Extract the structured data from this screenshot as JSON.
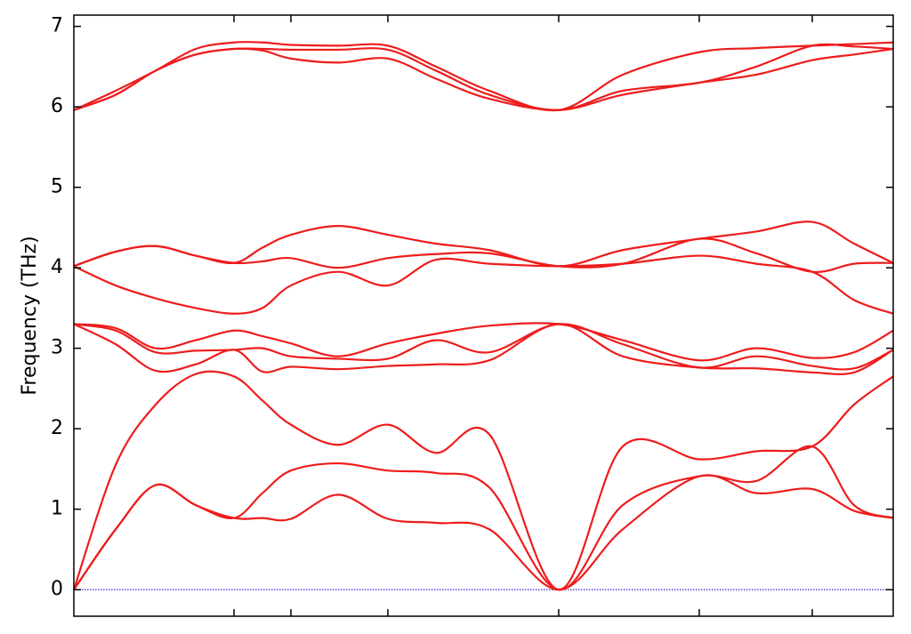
{
  "chart_data": {
    "type": "line",
    "ylabel": "Frequency (THz)",
    "color": "#ee1c1c",
    "x": [
      0,
      0.47,
      0.92,
      1.37,
      1.8,
      2.12,
      2.44,
      2.97,
      3.53,
      4.07,
      4.67,
      5.45,
      6.17,
      7.03,
      7.67,
      8.3,
      8.77,
      9.21
    ],
    "series": [
      {
        "values": [
          0,
          0.75,
          1.3,
          1.05,
          0.89,
          0.89,
          0.88,
          1.18,
          0.88,
          0.83,
          0.75,
          0,
          0.75,
          1.41,
          1.2,
          1.25,
          0.98,
          0.89
        ]
      },
      {
        "values": [
          0,
          0.75,
          1.3,
          1.05,
          0.89,
          1.2,
          1.48,
          1.57,
          1.48,
          1.45,
          1.27,
          0,
          1.05,
          1.41,
          1.35,
          1.78,
          1.05,
          0.89
        ]
      },
      {
        "values": [
          0,
          1.55,
          2.3,
          2.68,
          2.65,
          2.35,
          2.05,
          1.8,
          2.05,
          1.7,
          1.93,
          0,
          1.78,
          1.62,
          1.72,
          1.78,
          2.3,
          2.65
        ]
      },
      {
        "values": [
          3.3,
          3.05,
          2.72,
          2.8,
          2.98,
          2.71,
          2.77,
          2.74,
          2.78,
          2.8,
          2.85,
          3.3,
          2.9,
          2.76,
          2.75,
          2.7,
          2.7,
          2.98
        ]
      },
      {
        "values": [
          3.3,
          3.22,
          2.95,
          2.97,
          2.98,
          3.0,
          2.9,
          2.87,
          2.87,
          3.1,
          2.95,
          3.3,
          3.05,
          2.76,
          2.9,
          2.78,
          2.75,
          2.98
        ]
      },
      {
        "values": [
          3.3,
          3.25,
          3.0,
          3.1,
          3.22,
          3.15,
          3.06,
          2.9,
          3.06,
          3.18,
          3.28,
          3.3,
          3.1,
          2.85,
          3.0,
          2.88,
          2.95,
          3.22
        ]
      },
      {
        "values": [
          4.02,
          3.78,
          3.62,
          3.5,
          3.43,
          3.5,
          3.78,
          3.95,
          3.78,
          4.1,
          4.05,
          4.02,
          4.05,
          4.15,
          4.05,
          3.95,
          3.6,
          3.43
        ]
      },
      {
        "values": [
          4.02,
          4.2,
          4.27,
          4.15,
          4.06,
          4.08,
          4.12,
          4.0,
          4.12,
          4.17,
          4.18,
          4.02,
          4.05,
          4.36,
          4.18,
          3.95,
          4.05,
          4.06
        ]
      },
      {
        "values": [
          4.02,
          4.2,
          4.27,
          4.15,
          4.06,
          4.25,
          4.41,
          4.52,
          4.41,
          4.3,
          4.22,
          4.02,
          4.22,
          4.36,
          4.45,
          4.57,
          4.3,
          4.06
        ]
      },
      {
        "values": [
          5.96,
          6.15,
          6.45,
          6.65,
          6.72,
          6.7,
          6.6,
          6.55,
          6.6,
          6.35,
          6.1,
          5.96,
          6.15,
          6.3,
          6.4,
          6.58,
          6.65,
          6.72
        ]
      },
      {
        "values": [
          5.96,
          6.15,
          6.45,
          6.65,
          6.72,
          6.72,
          6.71,
          6.71,
          6.71,
          6.45,
          6.15,
          5.96,
          6.2,
          6.3,
          6.5,
          6.76,
          6.75,
          6.72
        ]
      },
      {
        "values": [
          5.96,
          6.2,
          6.45,
          6.72,
          6.8,
          6.8,
          6.77,
          6.76,
          6.76,
          6.5,
          6.2,
          5.96,
          6.4,
          6.68,
          6.73,
          6.76,
          6.78,
          6.8
        ]
      }
    ],
    "xlim": [
      0,
      9.21
    ],
    "xticks": [
      1.8,
      2.44,
      3.53,
      5.45,
      7.03,
      8.3
    ],
    "ylim": [
      -0.33,
      7.14
    ],
    "yticks": [
      0,
      1,
      2,
      3,
      4,
      5,
      6,
      7
    ],
    "hline": {
      "value": 0,
      "color": "#2222cc"
    }
  }
}
